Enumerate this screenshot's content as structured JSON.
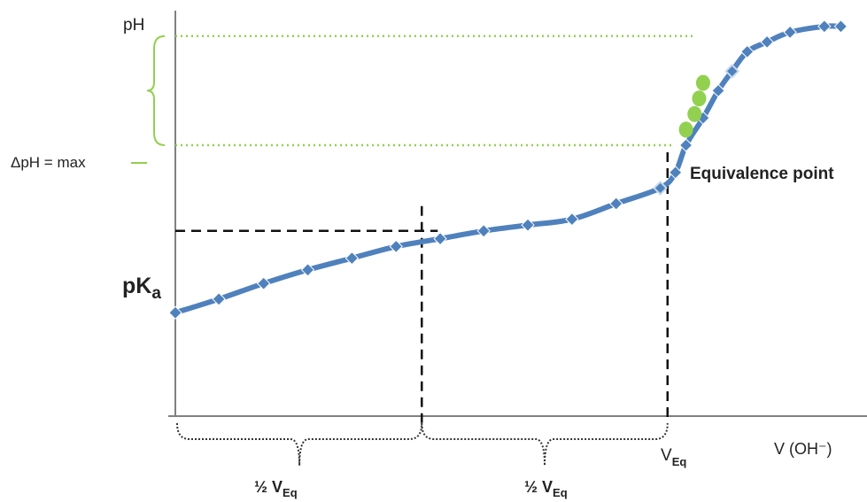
{
  "chart_data": {
    "type": "line",
    "title": "",
    "xlabel": "V (OH⁻)",
    "ylabel": "pH",
    "xlim": [
      0,
      10
    ],
    "ylim": [
      0,
      10
    ],
    "grid": false,
    "series": [
      {
        "x": [
          0.0,
          0.66,
          1.34,
          2.01,
          2.68,
          3.35,
          4.02,
          4.68,
          5.35,
          6.02,
          6.69,
          7.36,
          7.59,
          7.75,
          8.01,
          8.24,
          8.45,
          8.68,
          8.98,
          9.33,
          9.85,
          10.1
        ],
        "y": [
          2.2,
          2.55,
          2.95,
          3.3,
          3.6,
          3.9,
          4.1,
          4.3,
          4.45,
          4.6,
          5.0,
          5.4,
          5.8,
          6.5,
          7.2,
          7.9,
          8.4,
          8.9,
          9.15,
          9.4,
          9.55,
          9.55
        ]
      }
    ],
    "equivalence_points": {
      "x": [
        7.75,
        7.88,
        7.95,
        8.01
      ],
      "y": [
        6.9,
        7.3,
        7.7,
        8.1
      ]
    },
    "pKa_level": 4.3,
    "half_veq": 3.74,
    "veq": 7.47,
    "delta_ph_range": [
      6.5,
      9.3
    ],
    "labels": {
      "pka_main": "pK",
      "pka_sub": "a",
      "delta_ph": "ΔpH = max",
      "equivalence": "Equivalence point",
      "veq_main": "V",
      "veq_sub": "Eq",
      "half_veq_main": "½ V",
      "half_veq_sub": "Eq"
    },
    "colors": {
      "curve": "#4f81bd",
      "equivalence": "#92d050",
      "guides": "#111111"
    }
  }
}
